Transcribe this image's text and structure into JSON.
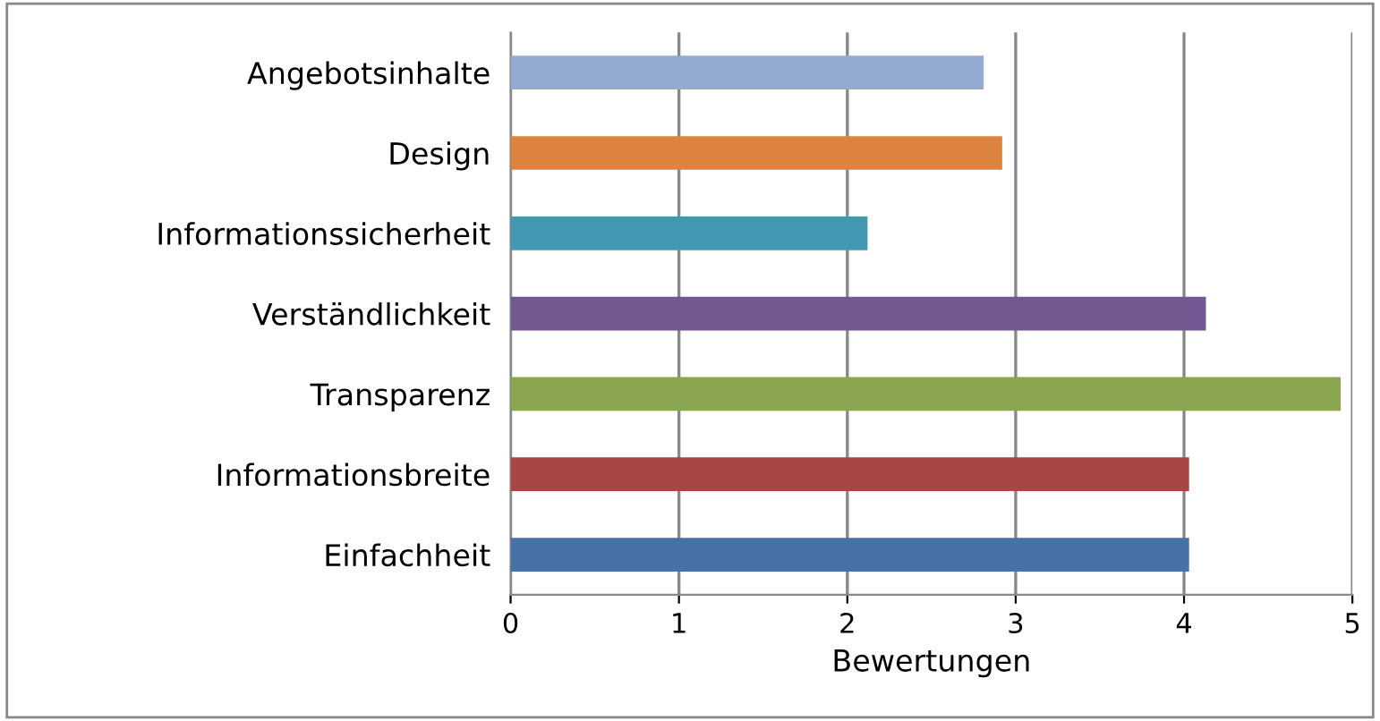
{
  "chart_data": {
    "type": "bar",
    "orientation": "horizontal",
    "xlabel": "Bewertungen",
    "categories": [
      "Angebotsinhalte",
      "Design",
      "Informationssicherheit",
      "Verständlichkeit",
      "Transparenz",
      "Informationsbreite",
      "Einfachheit"
    ],
    "values": [
      2.81,
      2.92,
      2.12,
      4.13,
      4.93,
      4.03,
      4.03
    ],
    "colors": [
      "#95aad2",
      "#dc843f",
      "#4298b0",
      "#725890",
      "#8aa650",
      "#a84646",
      "#4672a8"
    ],
    "xlim": [
      0,
      5
    ],
    "xticks": [
      0,
      1,
      2,
      3,
      4,
      5
    ],
    "grid": "x"
  }
}
